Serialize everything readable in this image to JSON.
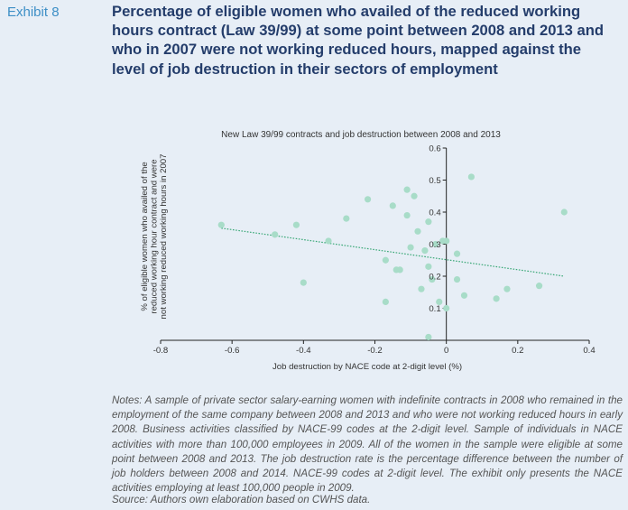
{
  "exhibit": "Exhibit 8",
  "title": "Percentage of eligible women who availed of the reduced working hours contract (Law 39/99) at some point between 2008 and 2013 and who in 2007 were not working reduced hours, mapped against the level of job destruction in their sectors of employment",
  "chart_data": {
    "type": "scatter",
    "title": "New Law 39/99 contracts and job destruction between 2008 and 2013",
    "xlabel": "Job destruction by NACE code at 2-digit level (%)",
    "ylabel_lines": [
      "% of eligible women who availed of the",
      "reduced working hour contract and were",
      "not working reduced working hours in 2007"
    ],
    "xlim": [
      -0.8,
      0.4
    ],
    "ylim": [
      0,
      0.6
    ],
    "x_ticks": [
      -0.8,
      -0.6,
      -0.4,
      -0.2,
      0,
      0.2,
      0.4
    ],
    "x_tick_labels": [
      "-0.8",
      "-0.6",
      "-0.4",
      "-0.2",
      "0",
      "0.2",
      "0.4"
    ],
    "y_ticks": [
      0.1,
      0.2,
      0.3,
      0.4,
      0.5,
      0.6
    ],
    "y_tick_labels": [
      "0.1",
      "0.2",
      "0.3",
      "0.4",
      "0.5",
      "0.6"
    ],
    "grid": false,
    "legend": "none",
    "marker_color": "#a8dcc8",
    "trend_color": "#3aa877",
    "points": [
      {
        "x": -0.63,
        "y": 0.36
      },
      {
        "x": -0.48,
        "y": 0.33
      },
      {
        "x": -0.42,
        "y": 0.36
      },
      {
        "x": -0.4,
        "y": 0.18
      },
      {
        "x": -0.33,
        "y": 0.31
      },
      {
        "x": -0.28,
        "y": 0.38
      },
      {
        "x": -0.22,
        "y": 0.44
      },
      {
        "x": -0.17,
        "y": 0.25
      },
      {
        "x": -0.17,
        "y": 0.12
      },
      {
        "x": -0.15,
        "y": 0.42
      },
      {
        "x": -0.14,
        "y": 0.22
      },
      {
        "x": -0.13,
        "y": 0.22
      },
      {
        "x": -0.11,
        "y": 0.47
      },
      {
        "x": -0.11,
        "y": 0.39
      },
      {
        "x": -0.1,
        "y": 0.29
      },
      {
        "x": -0.09,
        "y": 0.45
      },
      {
        "x": -0.08,
        "y": 0.34
      },
      {
        "x": -0.07,
        "y": 0.16
      },
      {
        "x": -0.06,
        "y": 0.28
      },
      {
        "x": -0.05,
        "y": 0.37
      },
      {
        "x": -0.05,
        "y": 0.23
      },
      {
        "x": -0.04,
        "y": 0.19
      },
      {
        "x": -0.03,
        "y": 0.3
      },
      {
        "x": -0.02,
        "y": 0.12
      },
      {
        "x": -0.01,
        "y": 0.31
      },
      {
        "x": 0.0,
        "y": 0.31
      },
      {
        "x": 0.0,
        "y": 0.1
      },
      {
        "x": -0.05,
        "y": 0.01
      },
      {
        "x": 0.03,
        "y": 0.27
      },
      {
        "x": 0.03,
        "y": 0.19
      },
      {
        "x": 0.05,
        "y": 0.14
      },
      {
        "x": 0.07,
        "y": 0.51
      },
      {
        "x": 0.14,
        "y": 0.13
      },
      {
        "x": 0.17,
        "y": 0.16
      },
      {
        "x": 0.26,
        "y": 0.17
      },
      {
        "x": 0.33,
        "y": 0.4
      }
    ],
    "trendline": {
      "x": [
        -0.63,
        0.33
      ],
      "y": [
        0.35,
        0.2
      ]
    }
  },
  "notes": "Notes: A sample of private sector salary-earning women with indefinite contracts in 2008 who remained in the employment of the same company between 2008 and 2013 and who were not working reduced hours in early 2008. Business activities classified by NACE-99 codes at the 2-digit level. Sample of individuals in NACE activities with more than 100,000 employees in 2009. All of the women in the sample were eligible at some point between 2008 and 2013. The job destruction rate is the percentage difference between the number of job holders between 2008 and 2014. NACE-99 codes at 2-digit level. The exhibit only presents the NACE activities employing at least 100,000 people in 2009.",
  "source": "Source: Authors own elaboration based on CWHS data."
}
